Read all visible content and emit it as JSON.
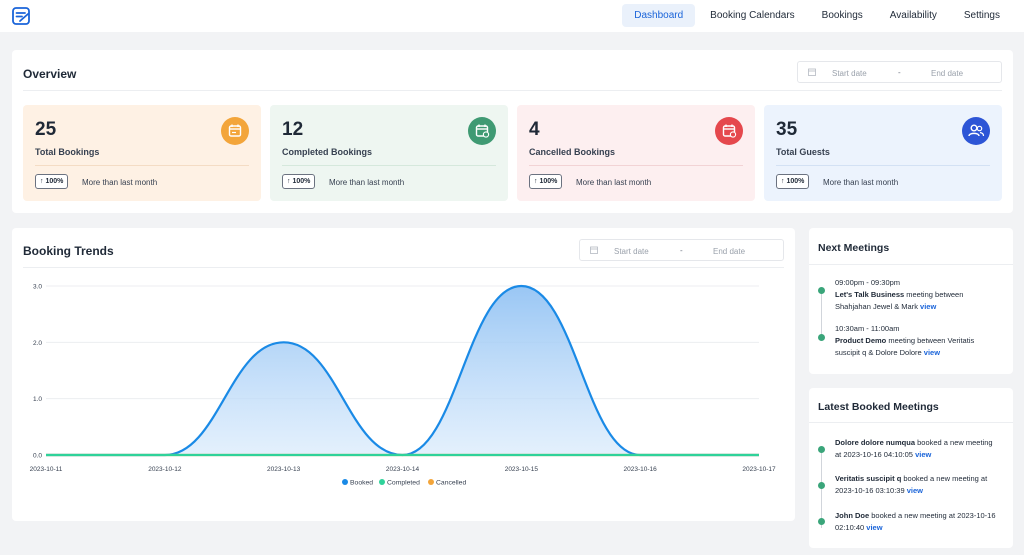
{
  "nav": {
    "items": [
      "Dashboard",
      "Booking Calendars",
      "Bookings",
      "Availability",
      "Settings"
    ],
    "active": "Dashboard"
  },
  "overview": {
    "title": "Overview",
    "date_start_placeholder": "Start date",
    "date_sep": "-",
    "date_end_placeholder": "End date",
    "stats": [
      {
        "value": "25",
        "label": "Total Bookings",
        "badge": "100%",
        "note": "More than last month",
        "bg": "#fef1e4",
        "icon_color": "#f3a53a",
        "icon": "calendar-icon"
      },
      {
        "value": "12",
        "label": "Completed Bookings",
        "badge": "100%",
        "note": "More than last month",
        "bg": "#eef6f1",
        "icon_color": "#3f9a73",
        "icon": "calendar-check-icon"
      },
      {
        "value": "4",
        "label": "Cancelled Bookings",
        "badge": "100%",
        "note": "More than last month",
        "bg": "#fdeff0",
        "icon_color": "#e5484d",
        "icon": "calendar-cancel-icon"
      },
      {
        "value": "35",
        "label": "Total Guests",
        "badge": "100%",
        "note": "More than last month",
        "bg": "#ecf3fd",
        "icon_color": "#2d55d6",
        "icon": "users-icon"
      }
    ]
  },
  "trends": {
    "title": "Booking Trends",
    "date_start_placeholder": "Start date",
    "date_sep": "-",
    "date_end_placeholder": "End date"
  },
  "chart_data": {
    "type": "area",
    "categories": [
      "2023-10-11",
      "2023-10-12",
      "2023-10-13",
      "2023-10-14",
      "2023-10-15",
      "2023-10-16",
      "2023-10-17"
    ],
    "series": [
      {
        "name": "Booked",
        "values": [
          0,
          0,
          2,
          0,
          3,
          0,
          0
        ],
        "color": "#1a8ae6"
      },
      {
        "name": "Completed",
        "values": [
          0,
          0,
          0,
          0,
          0,
          0,
          0
        ],
        "color": "#2fd29a"
      },
      {
        "name": "Cancelled",
        "values": [
          0,
          0,
          0,
          0,
          0,
          0,
          0
        ],
        "color": "#f3a53a"
      }
    ],
    "ylim": [
      0,
      3
    ],
    "yticks": [
      "0.0",
      "1.0",
      "2.0",
      "3.0"
    ],
    "legend": "bottom",
    "grid": true
  },
  "next_meetings": {
    "title": "Next Meetings",
    "items": [
      {
        "time": "09:00pm - 09:30pm",
        "name": "Let's Talk Business",
        "text": " meeting between Shahjahan Jewel & Mark ",
        "link": "view"
      },
      {
        "time": "10:30am - 11:00am",
        "name": "Product Demo",
        "text": " meeting between Veritatis suscipit q & Dolore Dolore ",
        "link": "view"
      }
    ]
  },
  "latest_booked": {
    "title": "Latest Booked Meetings",
    "items": [
      {
        "name": "Dolore dolore numqua",
        "text": " booked a new meeting at 2023-10-16 04:10:05 ",
        "link": "view"
      },
      {
        "name": "Veritatis suscipit q",
        "text": " booked a new meeting at 2023-10-16 03:10:39 ",
        "link": "view"
      },
      {
        "name": "John Doe",
        "text": " booked a new meeting at 2023-10-16 02:10:40 ",
        "link": "view"
      }
    ]
  }
}
